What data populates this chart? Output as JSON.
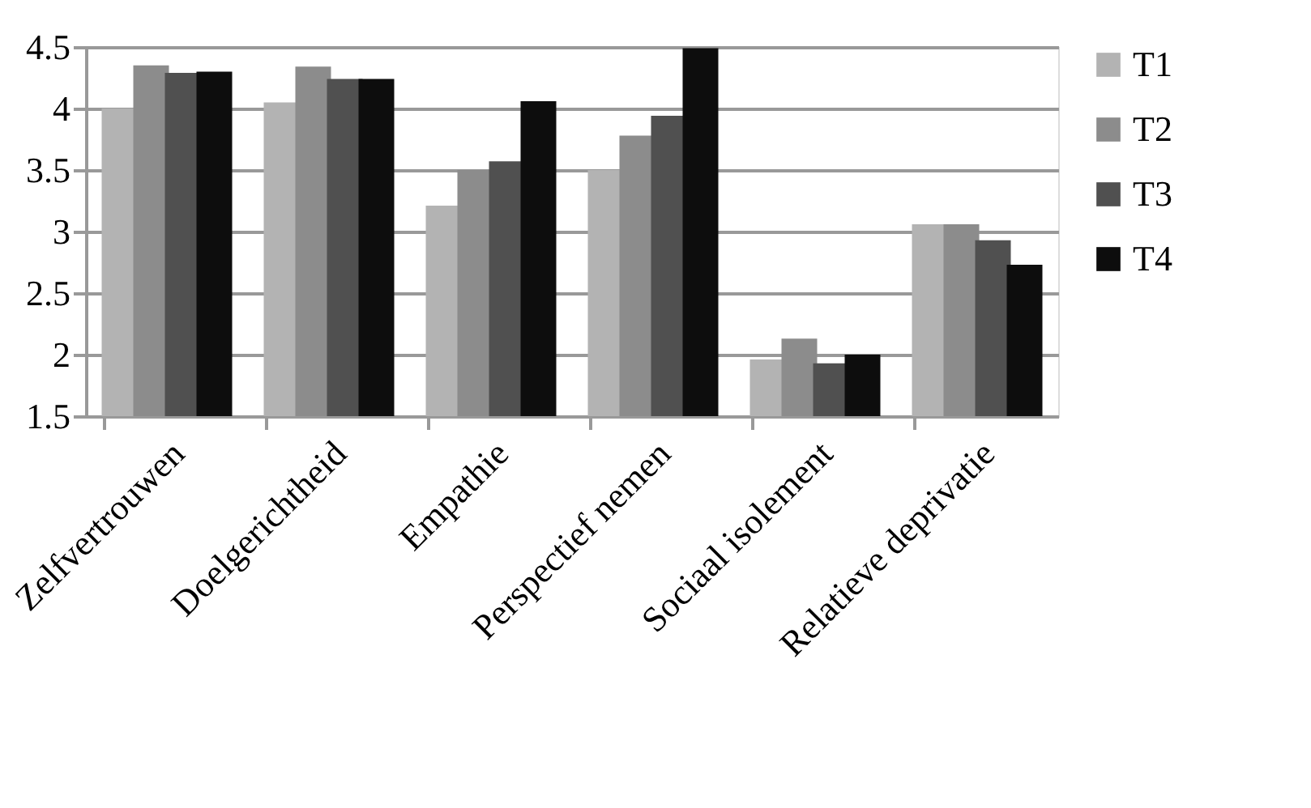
{
  "chart_data": {
    "type": "bar",
    "categories": [
      "Zelfvertrouwen",
      "Doelgerichtheid",
      "Empathie",
      "Perspectief nemen",
      "Sociaal isolement",
      "Relatieve deprivatie"
    ],
    "series": [
      {
        "name": "T1",
        "color": "#b3b3b3",
        "values": [
          4.0,
          4.05,
          3.21,
          3.5,
          1.96,
          3.06
        ]
      },
      {
        "name": "T2",
        "color": "#8c8c8c",
        "values": [
          4.35,
          4.34,
          3.5,
          3.78,
          2.13,
          3.06
        ]
      },
      {
        "name": "T3",
        "color": "#505050",
        "values": [
          4.29,
          4.24,
          3.57,
          3.94,
          1.93,
          2.93
        ]
      },
      {
        "name": "T4",
        "color": "#0d0d0d",
        "values": [
          4.3,
          4.24,
          4.06,
          4.49,
          2.0,
          2.73
        ]
      }
    ],
    "ylim": [
      1.5,
      4.5
    ],
    "yticks": [
      1.5,
      2,
      2.5,
      3,
      3.5,
      4,
      4.5
    ],
    "grid": "y",
    "legend": "right"
  }
}
